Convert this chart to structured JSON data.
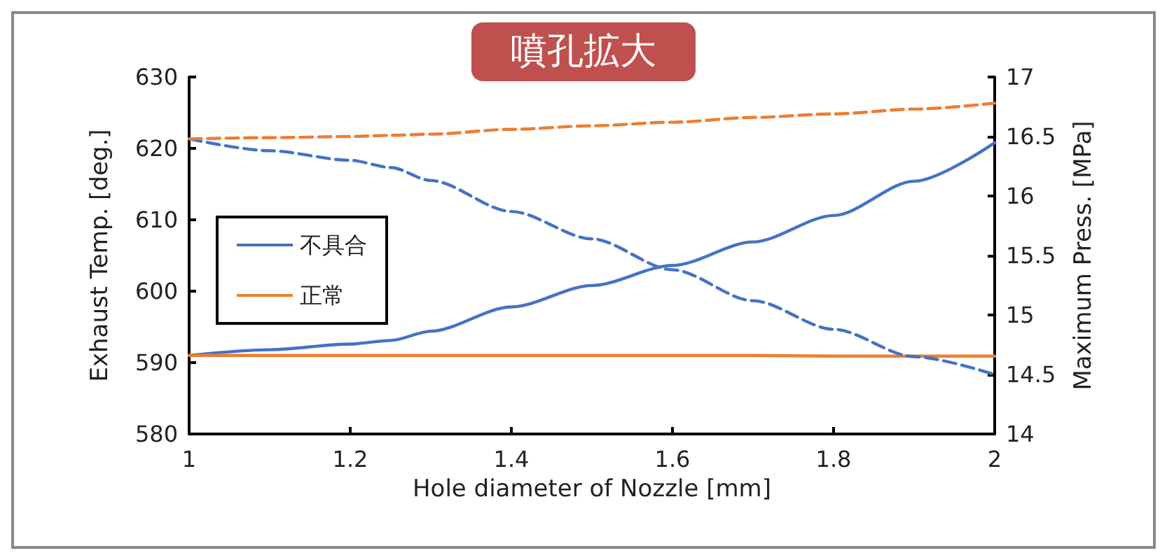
{
  "chart_data": {
    "type": "line",
    "title": "噴孔拡大",
    "xlabel": "Hole diameter of Nozzle [mm]",
    "ylabel": "Exhaust Temp. [deg.]",
    "y2label": "Maximum Press. [MPa]",
    "xlim": [
      1,
      2
    ],
    "xticks": [
      1,
      1.2,
      1.4,
      1.6,
      1.8,
      2
    ],
    "ylim": [
      580,
      630
    ],
    "yticks": [
      580,
      590,
      600,
      610,
      620,
      630
    ],
    "y2lim": [
      14,
      17
    ],
    "y2ticks": [
      14,
      14.5,
      15,
      15.5,
      16,
      16.5,
      17
    ],
    "x": [
      1,
      1.1,
      1.2,
      1.25,
      1.3,
      1.4,
      1.5,
      1.6,
      1.7,
      1.8,
      1.9,
      2
    ],
    "series": [
      {
        "name": "不具合",
        "color": "#4472c4",
        "line_style": "solid",
        "values": [
          591,
          591.8,
          592.6,
          593.1,
          594.4,
          597.8,
          600.8,
          603.6,
          606.9,
          610.6,
          615.4,
          620.8
        ]
      },
      {
        "name": "正常",
        "color": "#ed7d31",
        "line_style": "solid",
        "values": [
          591,
          591,
          591,
          591,
          591,
          591,
          591,
          591,
          591,
          590.9,
          590.9,
          590.9
        ]
      },
      {
        "color": "#4472c4",
        "line_style": "dashed",
        "axis": "y2",
        "values": [
          16.48,
          16.38,
          16.3,
          16.24,
          16.13,
          15.87,
          15.64,
          15.38,
          15.12,
          14.88,
          14.65,
          14.5
        ]
      },
      {
        "color": "#ed7d31",
        "line_style": "dashed",
        "axis": "y2",
        "values": [
          16.48,
          16.49,
          16.5,
          16.51,
          16.52,
          16.56,
          16.59,
          16.62,
          16.66,
          16.69,
          16.73,
          16.78
        ]
      }
    ],
    "marker": "none",
    "grid": false,
    "legend": "left"
  }
}
